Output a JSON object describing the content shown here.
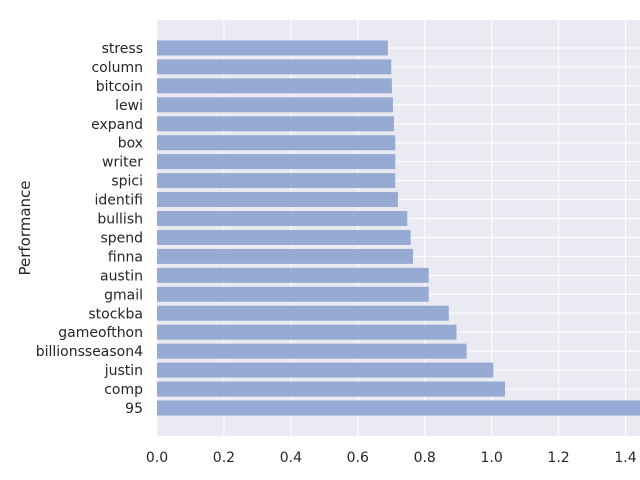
{
  "chart_data": {
    "type": "bar",
    "orientation": "horizontal",
    "title": "",
    "xlabel": "",
    "ylabel": "Performance",
    "categories": [
      "95",
      "comp",
      "justin",
      "billionsseason4",
      "gameofthon",
      "stockba",
      "gmail",
      "austin",
      "finna",
      "spend",
      "bullish",
      "identifi",
      "spici",
      "writer",
      "box",
      "expand",
      "lewi",
      "bitcoin",
      "column",
      "stress"
    ],
    "values": [
      1.46,
      1.04,
      1.005,
      0.925,
      0.895,
      0.872,
      0.812,
      0.812,
      0.765,
      0.758,
      0.748,
      0.72,
      0.712,
      0.712,
      0.712,
      0.708,
      0.705,
      0.702,
      0.7,
      0.69
    ],
    "xlim": [
      0,
      1.533
    ],
    "xticks": [
      0.0,
      0.2,
      0.4,
      0.6,
      0.8,
      1.0,
      1.2,
      1.4
    ],
    "xtick_labels": [
      "0.0",
      "0.2",
      "0.4",
      "0.6",
      "0.8",
      "1.0",
      "1.2",
      "1.4"
    ],
    "grid": true,
    "colors": {
      "bar": "#97aad4",
      "background": "#eaeaf2",
      "grid": "#ffffff",
      "text": "#262626"
    }
  }
}
